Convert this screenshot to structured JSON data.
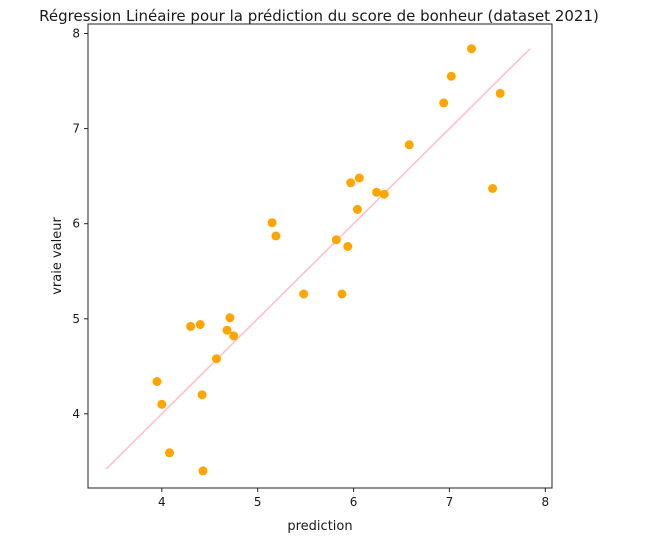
{
  "chart_data": {
    "type": "scatter",
    "title": "Régression Linéaire pour la prédiction du score de bonheur (dataset 2021)",
    "xlabel": "prediction",
    "ylabel": "vraie valeur",
    "xlim": [
      3.23,
      8.07
    ],
    "ylim": [
      3.22,
      8.1
    ],
    "xticks": [
      "4",
      "5",
      "6",
      "7",
      "8"
    ],
    "yticks": [
      "4",
      "5",
      "6",
      "7",
      "8"
    ],
    "grid": false,
    "legend": "none",
    "points": {
      "color": "#ffa500",
      "x": [
        3.95,
        4.0,
        4.08,
        4.3,
        4.4,
        4.42,
        4.43,
        4.57,
        4.68,
        4.71,
        4.75,
        5.15,
        5.19,
        5.48,
        5.82,
        5.88,
        5.94,
        5.97,
        6.04,
        6.06,
        6.24,
        6.32,
        6.58,
        6.94,
        7.02,
        7.23,
        7.45,
        7.53
      ],
      "y": [
        4.34,
        4.1,
        3.59,
        4.92,
        4.94,
        4.2,
        3.4,
        4.58,
        4.88,
        5.01,
        4.82,
        6.01,
        5.87,
        5.26,
        5.83,
        5.26,
        5.76,
        6.43,
        6.15,
        6.48,
        6.33,
        6.31,
        6.83,
        7.27,
        7.55,
        7.84,
        6.37,
        7.37
      ]
    },
    "line": {
      "color": "#ffc0cb",
      "x": [
        3.42,
        7.84
      ],
      "y": [
        3.42,
        7.84
      ]
    }
  }
}
